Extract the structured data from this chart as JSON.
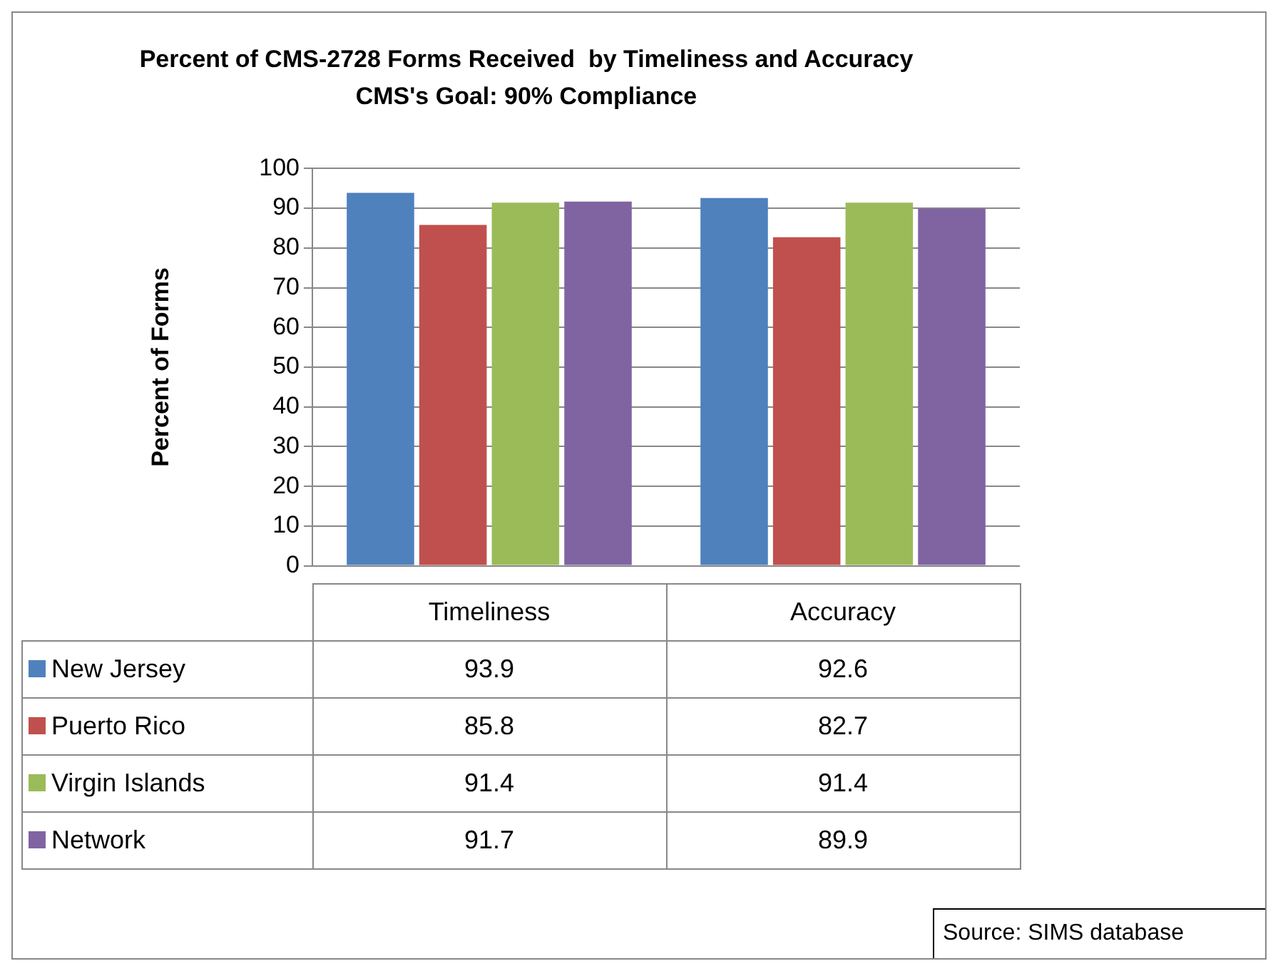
{
  "chart_data": {
    "type": "bar",
    "title": "Percent of CMS-2728 Forms Received  by Timeliness and Accuracy  CMS's Goal: 90% Compliance",
    "ylabel": "Percent of Forms",
    "categories": [
      "Timeliness",
      "Accuracy"
    ],
    "series": [
      {
        "name": "New Jersey",
        "color": "#4f81bd",
        "values": [
          93.9,
          92.6
        ]
      },
      {
        "name": "Puerto Rico",
        "color": "#c0504d",
        "values": [
          85.8,
          82.7
        ]
      },
      {
        "name": "Virgin Islands",
        "color": "#9bbb59",
        "values": [
          91.4,
          91.4
        ]
      },
      {
        "name": "Network",
        "color": "#8064a2",
        "values": [
          91.7,
          89.9
        ]
      }
    ],
    "ylim": [
      0,
      100
    ],
    "yticks": [
      0,
      10,
      20,
      30,
      40,
      50,
      60,
      70,
      80,
      90,
      100
    ],
    "grid": "y",
    "legend": "bottom",
    "data_labels": true,
    "annotations": [
      "Source: SIMS database"
    ]
  }
}
